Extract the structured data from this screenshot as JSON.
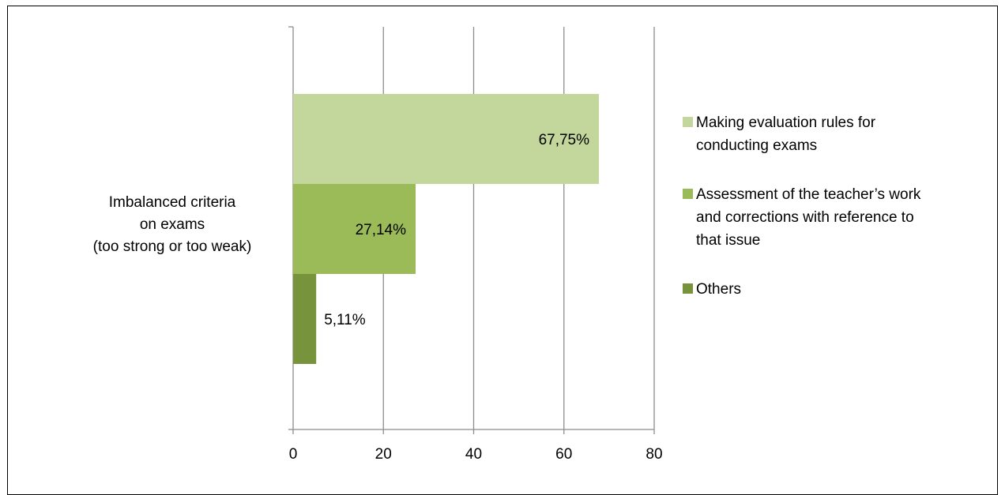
{
  "chart_data": {
    "type": "bar",
    "orientation": "horizontal",
    "categories": [
      "Imbalanced criteria|on exams|(too strong or too weak)"
    ],
    "category_lines": [
      "Imbalanced criteria",
      "on exams",
      "(too strong or too weak)"
    ],
    "series": [
      {
        "name": "Making evaluation rules for conducting exams",
        "name_lines": [
          "Making evaluation rules for",
          "conducting exams"
        ],
        "values": [
          67.75
        ],
        "label": "67,75%",
        "color": "#c3d69b"
      },
      {
        "name": "Assessment of the teacher’s work and corrections with reference to that issue",
        "name_lines": [
          "Assessment of the teacher’s work",
          "and corrections with reference to",
          "that issue"
        ],
        "values": [
          27.14
        ],
        "label": "27,14%",
        "color": "#9bbb59"
      },
      {
        "name": "Others",
        "name_lines": [
          "Others"
        ],
        "values": [
          5.11
        ],
        "label": "5,11%",
        "color": "#77933c"
      }
    ],
    "xlim": [
      0,
      80
    ],
    "xticks": [
      "0",
      "20",
      "40",
      "60",
      "80"
    ],
    "grid": true,
    "legend_position": "right",
    "title": "",
    "xlabel": "",
    "ylabel": ""
  }
}
